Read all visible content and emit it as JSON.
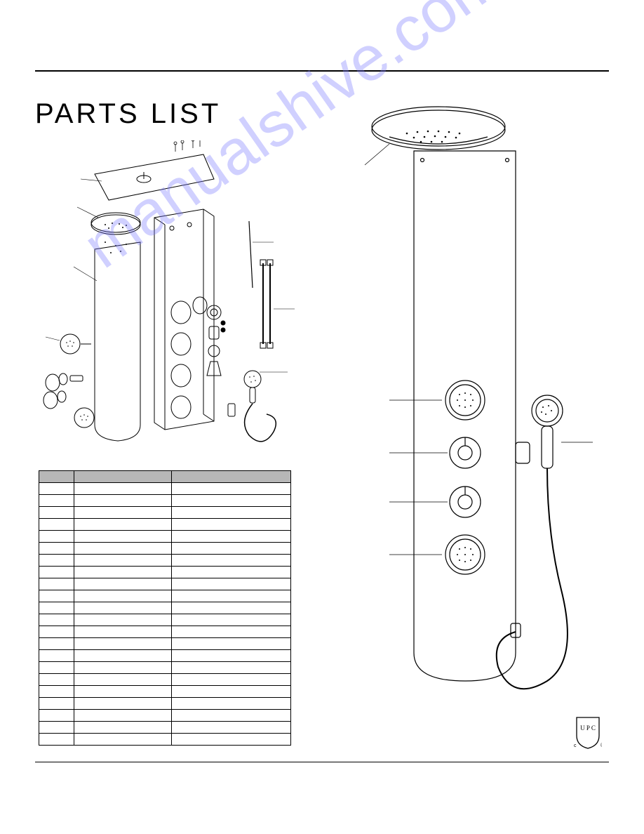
{
  "title": "PARTS LIST",
  "watermark": "manualshive.com",
  "upc_label": "U P C",
  "upc_reg": "®",
  "upc_c": "c",
  "table": {
    "columns": [
      "",
      "",
      ""
    ],
    "rows": [
      [
        "",
        "",
        ""
      ],
      [
        "",
        "",
        ""
      ],
      [
        "",
        "",
        ""
      ],
      [
        "",
        "",
        ""
      ],
      [
        "",
        "",
        ""
      ],
      [
        "",
        "",
        ""
      ],
      [
        "",
        "",
        ""
      ],
      [
        "",
        "",
        ""
      ],
      [
        "",
        "",
        ""
      ],
      [
        "",
        "",
        ""
      ],
      [
        "",
        "",
        ""
      ],
      [
        "",
        "",
        ""
      ],
      [
        "",
        "",
        ""
      ],
      [
        "",
        "",
        ""
      ],
      [
        "",
        "",
        ""
      ],
      [
        "",
        "",
        ""
      ],
      [
        "",
        "",
        ""
      ],
      [
        "",
        "",
        ""
      ],
      [
        "",
        "",
        ""
      ],
      [
        "",
        "",
        ""
      ],
      [
        "",
        "",
        ""
      ],
      [
        "",
        "",
        ""
      ]
    ]
  },
  "colors": {
    "line": "#000000",
    "bg": "#ffffff",
    "header_fill": "#b7b7b7",
    "watermark": "rgba(120,120,255,0.35)"
  }
}
